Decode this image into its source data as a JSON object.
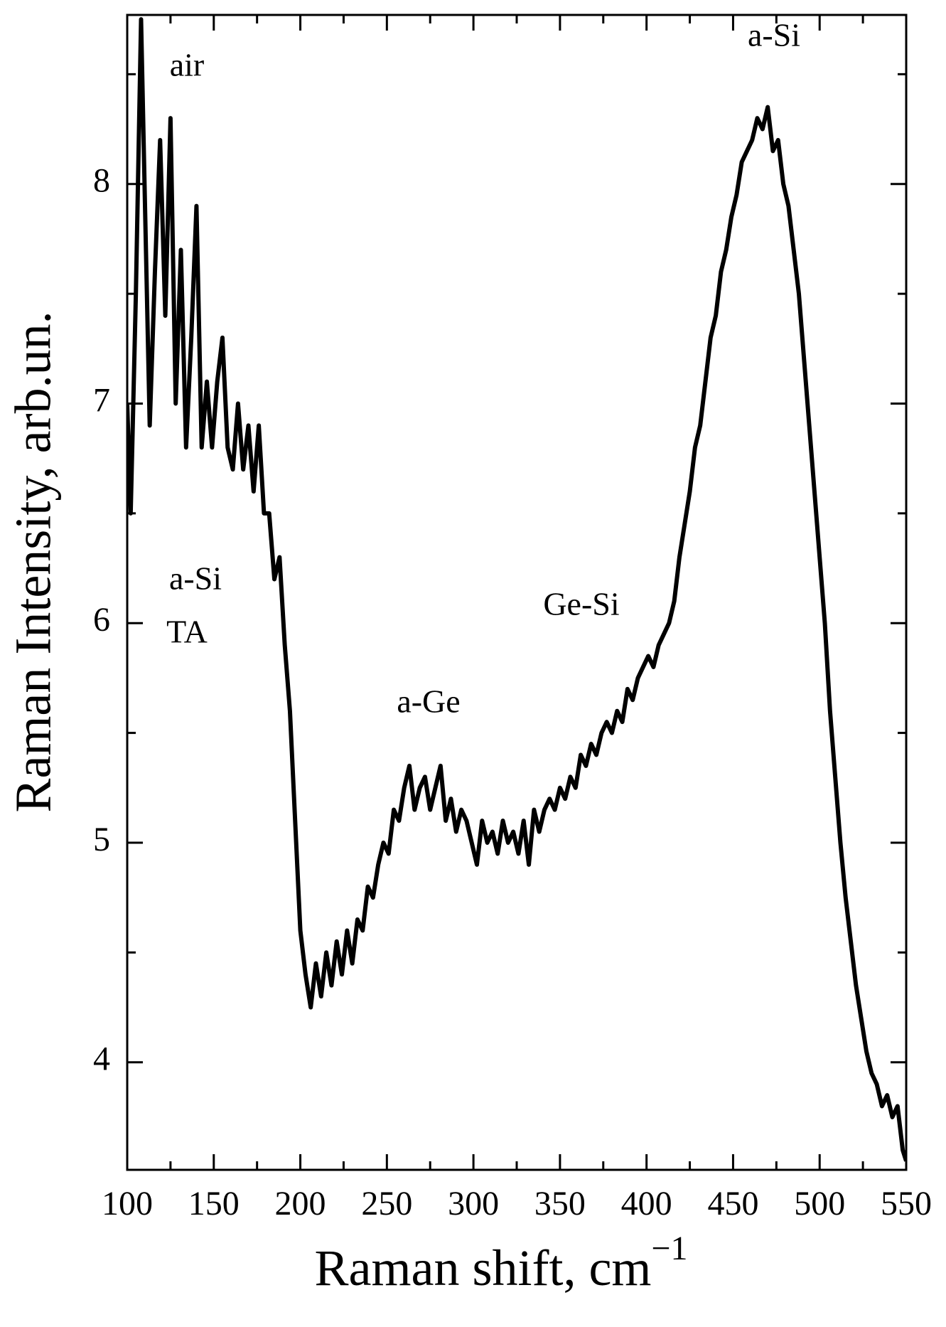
{
  "chart_data": {
    "type": "line",
    "x_label": "Raman shift, cm",
    "x_label_superscript": "−1",
    "y_label": "Raman Intensity, arb.un.",
    "annotations": [
      "air",
      "a-Si",
      "TA",
      "a-Ge",
      "Ge-Si",
      "a-Si"
    ],
    "color": "#000000",
    "xlim": [
      100,
      550
    ],
    "xticks": [
      100,
      150,
      200,
      250,
      300,
      350,
      400,
      450,
      500,
      550
    ],
    "ylim": [
      3.51,
      8.77
    ],
    "yticks": [
      4,
      5,
      6,
      7,
      8
    ],
    "x": [
      100,
      102,
      105,
      108,
      110,
      113,
      116,
      119,
      122,
      125,
      128,
      131,
      134,
      137,
      140,
      143,
      146,
      149,
      152,
      155,
      158,
      161,
      164,
      167,
      170,
      173,
      176,
      179,
      182,
      185,
      188,
      191,
      194,
      197,
      200,
      203,
      206,
      209,
      212,
      215,
      218,
      221,
      224,
      227,
      230,
      233,
      236,
      239,
      242,
      245,
      248,
      251,
      254,
      257,
      260,
      263,
      266,
      269,
      272,
      275,
      278,
      281,
      284,
      287,
      290,
      293,
      296,
      299,
      302,
      305,
      308,
      311,
      314,
      317,
      320,
      323,
      326,
      329,
      332,
      335,
      338,
      341,
      344,
      347,
      350,
      353,
      356,
      359,
      362,
      365,
      368,
      371,
      374,
      377,
      380,
      383,
      386,
      389,
      392,
      395,
      398,
      401,
      404,
      407,
      410,
      413,
      416,
      419,
      422,
      425,
      428,
      431,
      434,
      437,
      440,
      443,
      446,
      449,
      452,
      455,
      458,
      461,
      464,
      467,
      470,
      473,
      476,
      479,
      482,
      485,
      488,
      491,
      494,
      497,
      500,
      503,
      506,
      509,
      512,
      515,
      518,
      521,
      524,
      527,
      530,
      533,
      536,
      539,
      542,
      545,
      548,
      550
    ],
    "values": [
      7.0,
      6.5,
      7.5,
      8.75,
      8.0,
      6.9,
      7.6,
      8.2,
      7.4,
      8.3,
      7.0,
      7.7,
      6.8,
      7.3,
      7.9,
      6.8,
      7.1,
      6.8,
      7.1,
      7.3,
      6.8,
      6.7,
      7.0,
      6.7,
      6.9,
      6.6,
      6.9,
      6.5,
      6.5,
      6.2,
      6.3,
      5.9,
      5.6,
      5.1,
      4.6,
      4.4,
      4.25,
      4.45,
      4.3,
      4.5,
      4.35,
      4.55,
      4.4,
      4.6,
      4.45,
      4.65,
      4.6,
      4.8,
      4.75,
      4.9,
      5.0,
      4.95,
      5.15,
      5.1,
      5.25,
      5.35,
      5.15,
      5.25,
      5.3,
      5.15,
      5.25,
      5.35,
      5.1,
      5.2,
      5.05,
      5.15,
      5.1,
      5.0,
      4.9,
      5.1,
      5.0,
      5.05,
      4.95,
      5.1,
      5.0,
      5.05,
      4.95,
      5.1,
      4.9,
      5.15,
      5.05,
      5.15,
      5.2,
      5.15,
      5.25,
      5.2,
      5.3,
      5.25,
      5.4,
      5.35,
      5.45,
      5.4,
      5.5,
      5.55,
      5.5,
      5.6,
      5.55,
      5.7,
      5.65,
      5.75,
      5.8,
      5.85,
      5.8,
      5.9,
      5.95,
      6.0,
      6.1,
      6.3,
      6.45,
      6.6,
      6.8,
      6.9,
      7.1,
      7.3,
      7.4,
      7.6,
      7.7,
      7.85,
      7.95,
      8.1,
      8.15,
      8.2,
      8.3,
      8.25,
      8.35,
      8.15,
      8.2,
      8.0,
      7.9,
      7.7,
      7.5,
      7.2,
      6.9,
      6.6,
      6.3,
      6.0,
      5.6,
      5.3,
      5.0,
      4.75,
      4.55,
      4.35,
      4.2,
      4.05,
      3.95,
      3.9,
      3.8,
      3.85,
      3.75,
      3.8,
      3.6,
      3.55
    ]
  }
}
